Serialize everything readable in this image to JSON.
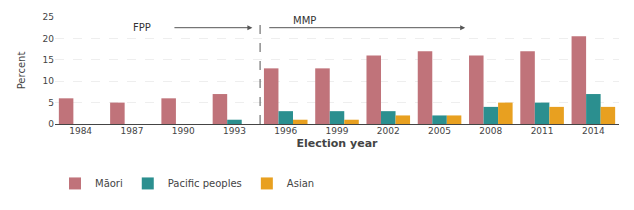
{
  "chart_data": {
    "type": "bar",
    "categories": [
      "1984",
      "1987",
      "1990",
      "1993",
      "1996",
      "1999",
      "2002",
      "2005",
      "2008",
      "2011",
      "2014"
    ],
    "series": [
      {
        "name": "Māori",
        "color": "#c0737a",
        "values": [
          6.0,
          5.0,
          6.0,
          7.0,
          13.0,
          13.0,
          16.0,
          17.0,
          16.0,
          17.0,
          20.5
        ]
      },
      {
        "name": "Pacific peoples",
        "color": "#2b8f8f",
        "values": [
          0.0,
          0.0,
          0.0,
          1.0,
          3.0,
          3.0,
          3.0,
          2.0,
          4.0,
          5.0,
          7.0
        ]
      },
      {
        "name": "Asian",
        "color": "#e8a020",
        "values": [
          0.0,
          0.0,
          0.0,
          0.0,
          1.0,
          1.0,
          2.0,
          2.0,
          5.0,
          4.0,
          4.0
        ]
      }
    ],
    "xlabel": "Election year",
    "ylabel": "Percent",
    "ylim": [
      0,
      25
    ],
    "yticks": [
      0,
      5,
      10,
      15,
      20,
      25
    ],
    "grid": true,
    "legend": "bottom",
    "annotations": [
      {
        "text": "FPP",
        "from": "1984",
        "to": "1993"
      },
      {
        "text": "MMP",
        "from": "1996",
        "to": "2014"
      }
    ]
  }
}
